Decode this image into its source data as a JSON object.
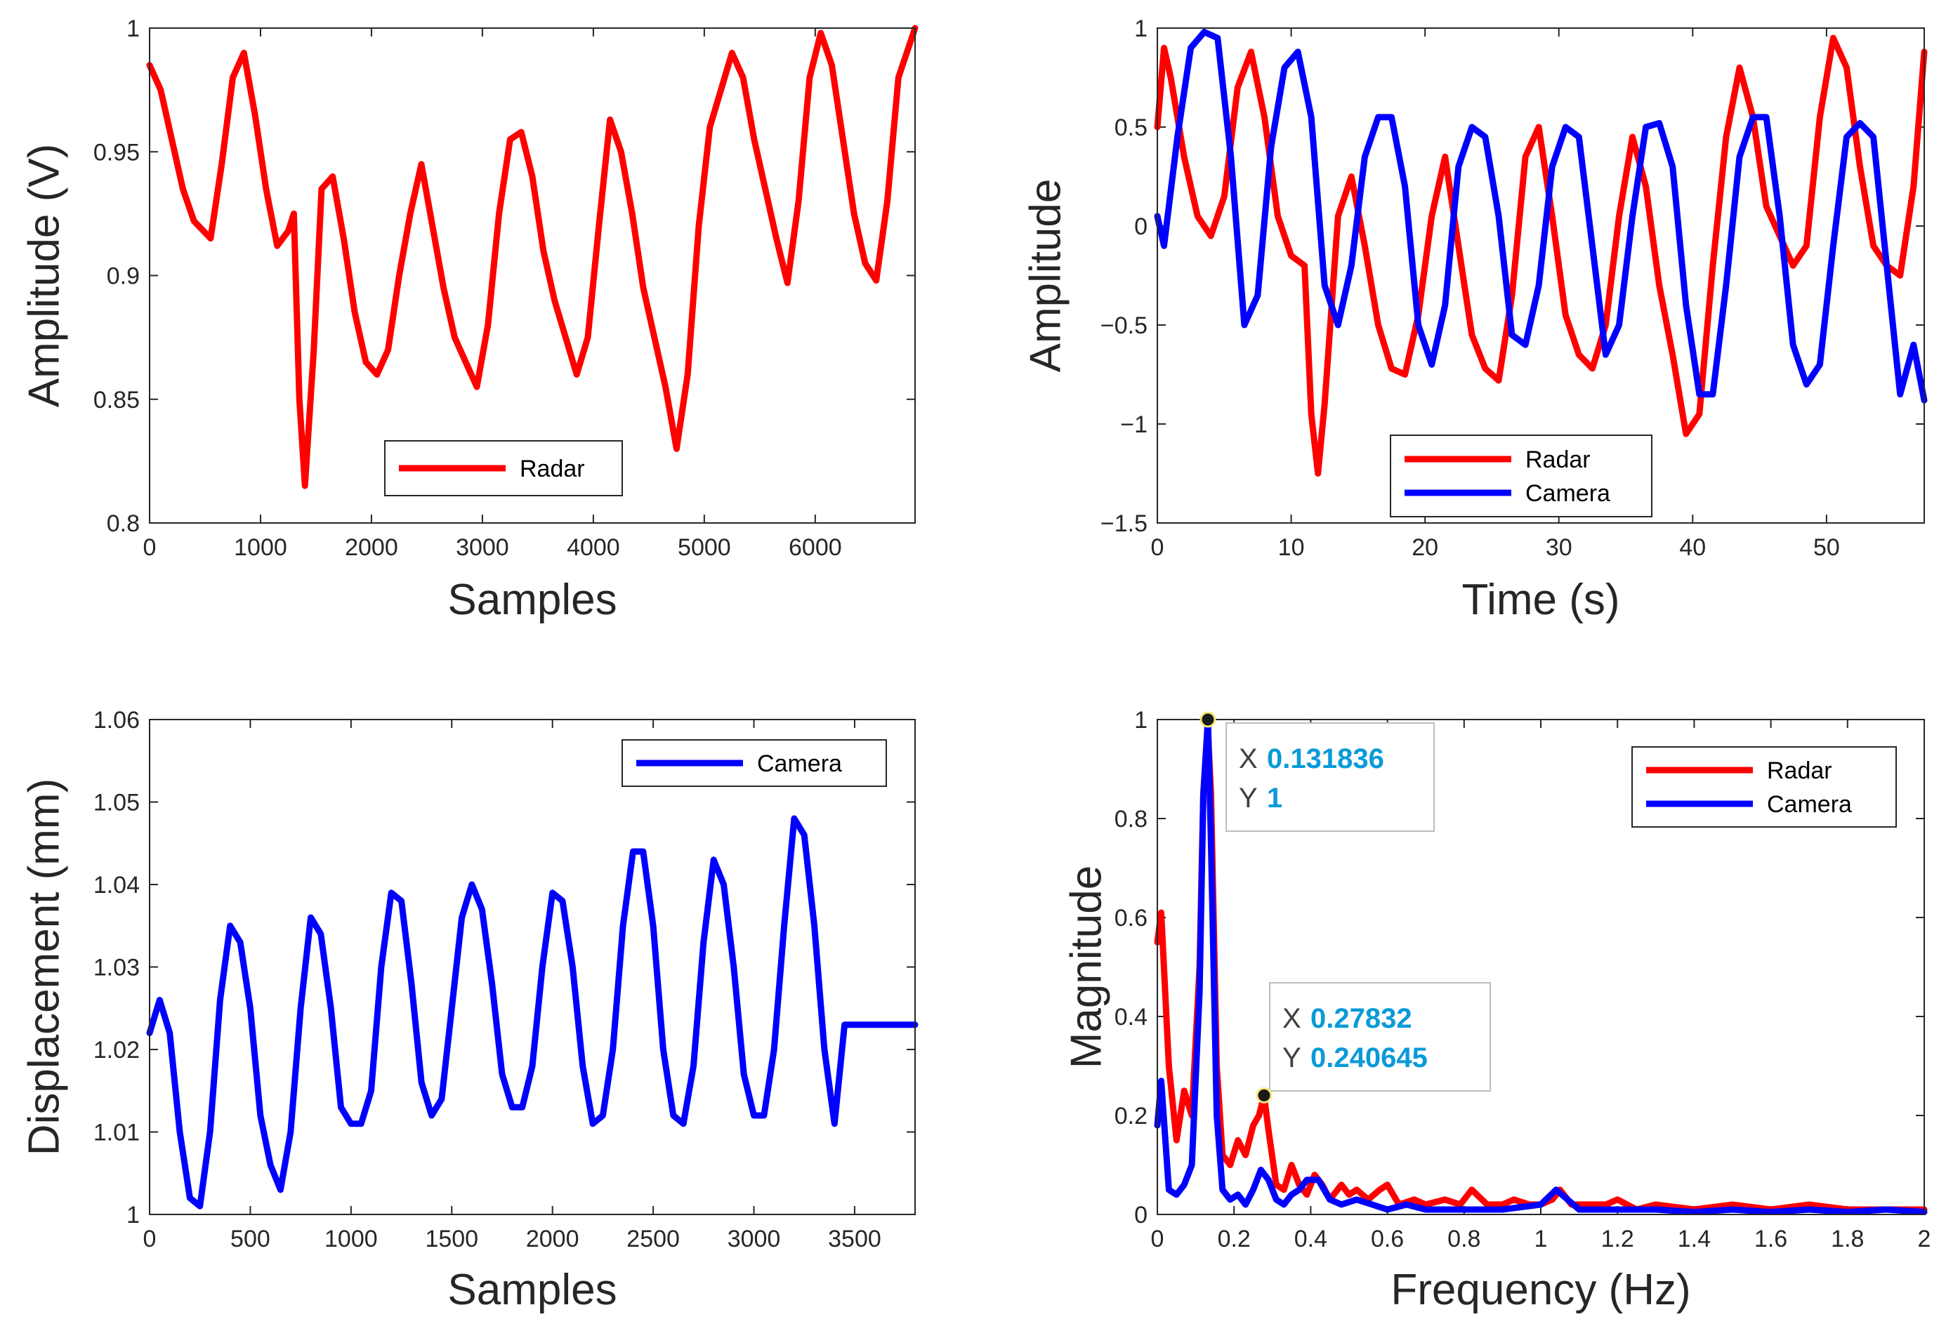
{
  "chart_data": [
    {
      "type": "line",
      "xlabel": "Samples",
      "ylabel": "Amplitude (V)",
      "xlim": [
        0,
        6900
      ],
      "ylim": [
        0.8,
        1.0
      ],
      "xticks": [
        0,
        1000,
        2000,
        3000,
        4000,
        5000,
        6000
      ],
      "xtick_labels": [
        "0",
        "1000",
        "2000",
        "3000",
        "4000",
        "5000",
        "6000"
      ],
      "yticks": [
        0.8,
        0.85,
        0.9,
        0.95,
        1.0
      ],
      "ytick_labels": [
        "0.8",
        "0.85",
        "0.9",
        "0.95",
        "1"
      ],
      "legend_position": "bottom-center",
      "series": [
        {
          "name": "Radar",
          "color": "#ff0000",
          "x": [
            0,
            100,
            200,
            300,
            400,
            550,
            650,
            750,
            850,
            950,
            1050,
            1150,
            1250,
            1300,
            1350,
            1400,
            1480,
            1550,
            1650,
            1750,
            1850,
            1950,
            2050,
            2150,
            2250,
            2350,
            2450,
            2550,
            2650,
            2750,
            2850,
            2950,
            3050,
            3150,
            3250,
            3350,
            3450,
            3550,
            3650,
            3750,
            3850,
            3950,
            4050,
            4150,
            4250,
            4350,
            4450,
            4550,
            4650,
            4750,
            4850,
            4950,
            5050,
            5150,
            5250,
            5350,
            5450,
            5550,
            5650,
            5750,
            5850,
            5950,
            6050,
            6150,
            6250,
            6350,
            6450,
            6550,
            6650,
            6750,
            6900
          ],
          "y": [
            0.985,
            0.975,
            0.955,
            0.935,
            0.922,
            0.915,
            0.945,
            0.98,
            0.99,
            0.965,
            0.935,
            0.912,
            0.918,
            0.925,
            0.85,
            0.815,
            0.87,
            0.935,
            0.94,
            0.915,
            0.885,
            0.865,
            0.86,
            0.87,
            0.9,
            0.925,
            0.945,
            0.92,
            0.895,
            0.875,
            0.865,
            0.855,
            0.88,
            0.925,
            0.955,
            0.958,
            0.94,
            0.91,
            0.89,
            0.875,
            0.86,
            0.875,
            0.92,
            0.963,
            0.95,
            0.925,
            0.895,
            0.875,
            0.855,
            0.83,
            0.86,
            0.92,
            0.96,
            0.975,
            0.99,
            0.98,
            0.955,
            0.935,
            0.915,
            0.897,
            0.93,
            0.98,
            0.998,
            0.985,
            0.955,
            0.925,
            0.905,
            0.898,
            0.93,
            0.98,
            1.0
          ]
        }
      ]
    },
    {
      "type": "line",
      "xlabel": "Time (s)",
      "ylabel": "Amplitude",
      "xlim": [
        0,
        57.3
      ],
      "ylim": [
        -1.5,
        1.0
      ],
      "xticks": [
        0,
        10,
        20,
        30,
        40,
        50
      ],
      "xtick_labels": [
        "0",
        "10",
        "20",
        "30",
        "40",
        "50"
      ],
      "yticks": [
        -1.5,
        -1,
        -0.5,
        0,
        0.5,
        1
      ],
      "ytick_labels": [
        "−1.5",
        "−1",
        "−0.5",
        "0",
        "0.5",
        "1"
      ],
      "legend_position": "bottom-center",
      "series": [
        {
          "name": "Radar",
          "color": "#ff0000",
          "x": [
            0,
            0.5,
            1,
            2,
            3,
            4,
            5,
            6,
            7,
            8,
            9,
            10,
            11,
            11.5,
            12,
            12.5,
            13.5,
            14.5,
            15.5,
            16.5,
            17.5,
            18.5,
            19.5,
            20.5,
            21.5,
            22.5,
            23.5,
            24.5,
            25.5,
            26.5,
            27.5,
            28.5,
            29.5,
            30.5,
            31.5,
            32.5,
            33.5,
            34.5,
            35.5,
            36.5,
            37.5,
            38.5,
            39.5,
            40.5,
            41.5,
            42.5,
            43.5,
            44.5,
            45.5,
            46.5,
            47.5,
            48.5,
            49.5,
            50.5,
            51.5,
            52.5,
            53.5,
            54.5,
            55.5,
            56.5,
            57.3
          ],
          "y": [
            0.5,
            0.9,
            0.75,
            0.35,
            0.05,
            -0.05,
            0.15,
            0.7,
            0.88,
            0.55,
            0.05,
            -0.15,
            -0.2,
            -0.95,
            -1.25,
            -0.9,
            0.05,
            0.25,
            -0.1,
            -0.5,
            -0.72,
            -0.75,
            -0.45,
            0.05,
            0.35,
            -0.1,
            -0.55,
            -0.72,
            -0.78,
            -0.35,
            0.35,
            0.5,
            0.05,
            -0.45,
            -0.65,
            -0.72,
            -0.5,
            0.05,
            0.45,
            0.2,
            -0.3,
            -0.65,
            -1.05,
            -0.95,
            -0.2,
            0.45,
            0.8,
            0.55,
            0.1,
            -0.05,
            -0.2,
            -0.1,
            0.55,
            0.95,
            0.8,
            0.3,
            -0.1,
            -0.2,
            -0.25,
            0.2,
            0.88
          ]
        },
        {
          "name": "Camera",
          "color": "#0000ff",
          "x": [
            0,
            0.5,
            1.5,
            2.5,
            3.5,
            4.5,
            5.5,
            6.5,
            7.5,
            8.5,
            9.5,
            10.5,
            11.5,
            12.5,
            13.5,
            14.5,
            15.5,
            16.5,
            17.5,
            18.5,
            19.5,
            20.5,
            21.5,
            22.5,
            23.5,
            24.5,
            25.5,
            26.5,
            27.5,
            28.5,
            29.5,
            30.5,
            31.5,
            32.5,
            33.5,
            34.5,
            35.5,
            36.5,
            37.5,
            38.5,
            39.5,
            40.5,
            41.5,
            42.5,
            43.5,
            44.5,
            45.5,
            46.5,
            47.5,
            48.5,
            49.5,
            50.5,
            51.5,
            52.5,
            53.5,
            54.5,
            55.5,
            56.5,
            57.3
          ],
          "y": [
            0.05,
            -0.1,
            0.45,
            0.9,
            0.98,
            0.95,
            0.35,
            -0.5,
            -0.35,
            0.4,
            0.8,
            0.88,
            0.55,
            -0.3,
            -0.5,
            -0.2,
            0.35,
            0.55,
            0.55,
            0.2,
            -0.5,
            -0.7,
            -0.4,
            0.3,
            0.5,
            0.45,
            0.05,
            -0.55,
            -0.6,
            -0.3,
            0.3,
            0.5,
            0.45,
            -0.1,
            -0.65,
            -0.5,
            0.05,
            0.5,
            0.52,
            0.3,
            -0.4,
            -0.85,
            -0.85,
            -0.3,
            0.35,
            0.55,
            0.55,
            0.05,
            -0.6,
            -0.8,
            -0.7,
            -0.1,
            0.45,
            0.52,
            0.45,
            -0.2,
            -0.85,
            -0.6,
            -0.88
          ]
        }
      ]
    },
    {
      "type": "line",
      "xlabel": "Samples",
      "ylabel": "Displacement (mm)",
      "xlim": [
        0,
        3800
      ],
      "ylim": [
        1.0,
        1.06
      ],
      "xticks": [
        0,
        500,
        1000,
        1500,
        2000,
        2500,
        3000,
        3500
      ],
      "xtick_labels": [
        "0",
        "500",
        "1000",
        "1500",
        "2000",
        "2500",
        "3000",
        "3500"
      ],
      "yticks": [
        1.0,
        1.01,
        1.02,
        1.03,
        1.04,
        1.05,
        1.06
      ],
      "ytick_labels": [
        "1",
        "1.01",
        "1.02",
        "1.03",
        "1.04",
        "1.05",
        "1.06"
      ],
      "legend_position": "top-right",
      "series": [
        {
          "name": "Camera",
          "color": "#0000ff",
          "x": [
            0,
            50,
            100,
            150,
            200,
            250,
            300,
            350,
            400,
            450,
            500,
            550,
            600,
            650,
            700,
            750,
            800,
            850,
            900,
            950,
            1000,
            1050,
            1100,
            1150,
            1200,
            1250,
            1300,
            1350,
            1400,
            1450,
            1500,
            1550,
            1600,
            1650,
            1700,
            1750,
            1800,
            1850,
            1900,
            1950,
            2000,
            2050,
            2100,
            2150,
            2200,
            2250,
            2300,
            2350,
            2400,
            2450,
            2500,
            2550,
            2600,
            2650,
            2700,
            2750,
            2800,
            2850,
            2900,
            2950,
            3000,
            3050,
            3100,
            3150,
            3200,
            3250,
            3300,
            3350,
            3400,
            3450,
            3500,
            3550,
            3600,
            3650,
            3700,
            3750,
            3800
          ],
          "y": [
            1.022,
            1.026,
            1.022,
            1.01,
            1.002,
            1.001,
            1.01,
            1.026,
            1.035,
            1.033,
            1.025,
            1.012,
            1.006,
            1.003,
            1.01,
            1.025,
            1.036,
            1.034,
            1.025,
            1.013,
            1.011,
            1.011,
            1.015,
            1.03,
            1.039,
            1.038,
            1.028,
            1.016,
            1.012,
            1.014,
            1.025,
            1.036,
            1.04,
            1.037,
            1.028,
            1.017,
            1.013,
            1.013,
            1.018,
            1.03,
            1.039,
            1.038,
            1.03,
            1.018,
            1.011,
            1.012,
            1.02,
            1.035,
            1.044,
            1.044,
            1.035,
            1.02,
            1.012,
            1.011,
            1.018,
            1.033,
            1.043,
            1.04,
            1.03,
            1.017,
            1.012,
            1.012,
            1.02,
            1.035,
            1.048,
            1.046,
            1.035,
            1.02,
            1.011,
            1.023,
            1.023,
            1.023,
            1.023,
            1.023,
            1.023,
            1.023,
            1.023
          ]
        }
      ]
    },
    {
      "type": "line",
      "xlabel": "Frequency (Hz)",
      "ylabel": "Magnitude",
      "xlim": [
        0,
        2
      ],
      "ylim": [
        0,
        1
      ],
      "xticks": [
        0,
        0.2,
        0.4,
        0.6,
        0.8,
        1,
        1.2,
        1.4,
        1.6,
        1.8,
        2
      ],
      "xtick_labels": [
        "0",
        "0.2",
        "0.4",
        "0.6",
        "0.8",
        "1",
        "1.2",
        "1.4",
        "1.6",
        "1.8",
        "2"
      ],
      "yticks": [
        0,
        0.2,
        0.4,
        0.6,
        0.8,
        1
      ],
      "ytick_labels": [
        "0",
        "0.2",
        "0.4",
        "0.6",
        "0.8",
        "1"
      ],
      "legend_position": "top-right",
      "series": [
        {
          "name": "Radar",
          "color": "#ff0000",
          "x": [
            0,
            0.01,
            0.03,
            0.05,
            0.07,
            0.09,
            0.11,
            0.12,
            0.1318,
            0.14,
            0.155,
            0.17,
            0.19,
            0.21,
            0.23,
            0.25,
            0.265,
            0.2783,
            0.29,
            0.31,
            0.33,
            0.35,
            0.37,
            0.39,
            0.41,
            0.43,
            0.45,
            0.48,
            0.5,
            0.52,
            0.55,
            0.58,
            0.6,
            0.63,
            0.67,
            0.7,
            0.75,
            0.79,
            0.82,
            0.86,
            0.9,
            0.93,
            0.97,
            1.0,
            1.03,
            1.05,
            1.08,
            1.12,
            1.17,
            1.2,
            1.25,
            1.3,
            1.4,
            1.5,
            1.6,
            1.7,
            1.8,
            1.9,
            2.0
          ],
          "y": [
            0.55,
            0.61,
            0.3,
            0.15,
            0.25,
            0.2,
            0.5,
            0.85,
            0.98,
            0.85,
            0.3,
            0.12,
            0.1,
            0.15,
            0.12,
            0.18,
            0.2,
            0.24,
            0.17,
            0.06,
            0.05,
            0.1,
            0.06,
            0.04,
            0.08,
            0.06,
            0.03,
            0.06,
            0.04,
            0.05,
            0.03,
            0.05,
            0.06,
            0.02,
            0.03,
            0.02,
            0.03,
            0.02,
            0.05,
            0.02,
            0.02,
            0.03,
            0.02,
            0.02,
            0.03,
            0.05,
            0.02,
            0.02,
            0.02,
            0.03,
            0.01,
            0.02,
            0.01,
            0.02,
            0.01,
            0.02,
            0.01,
            0.01,
            0.01
          ]
        },
        {
          "name": "Camera",
          "color": "#0000ff",
          "x": [
            0,
            0.01,
            0.03,
            0.05,
            0.07,
            0.09,
            0.11,
            0.12,
            0.1318,
            0.14,
            0.155,
            0.17,
            0.19,
            0.21,
            0.23,
            0.25,
            0.27,
            0.29,
            0.31,
            0.33,
            0.35,
            0.37,
            0.39,
            0.42,
            0.45,
            0.48,
            0.52,
            0.56,
            0.6,
            0.65,
            0.7,
            0.8,
            0.9,
            1.0,
            1.04,
            1.07,
            1.1,
            1.15,
            1.2,
            1.3,
            1.4,
            1.5,
            1.6,
            1.7,
            1.8,
            1.9,
            2.0
          ],
          "y": [
            0.18,
            0.27,
            0.05,
            0.04,
            0.06,
            0.1,
            0.45,
            0.85,
            1.0,
            0.75,
            0.2,
            0.05,
            0.03,
            0.04,
            0.02,
            0.05,
            0.09,
            0.07,
            0.03,
            0.02,
            0.04,
            0.05,
            0.07,
            0.07,
            0.03,
            0.02,
            0.03,
            0.02,
            0.01,
            0.02,
            0.01,
            0.01,
            0.01,
            0.02,
            0.05,
            0.03,
            0.01,
            0.01,
            0.01,
            0.01,
            0.005,
            0.01,
            0.005,
            0.01,
            0.005,
            0.01,
            0.005
          ]
        }
      ],
      "datatips": [
        {
          "x_label": "X",
          "x_value": "0.131836",
          "y_label": "Y",
          "y_value": "1",
          "point": [
            0.131836,
            1
          ]
        },
        {
          "x_label": "X",
          "x_value": "0.27832",
          "y_label": "Y",
          "y_value": "0.240645",
          "point": [
            0.27832,
            0.240645
          ]
        }
      ]
    }
  ]
}
